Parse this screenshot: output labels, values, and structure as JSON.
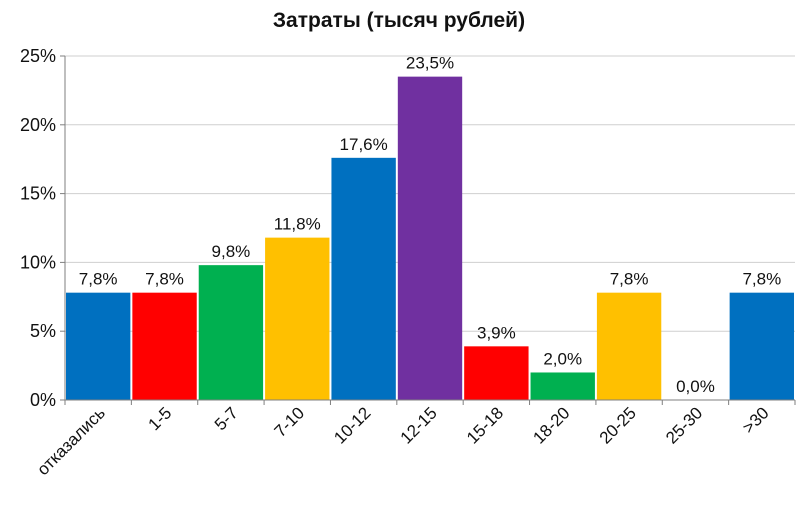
{
  "chart_data": {
    "type": "bar",
    "title": "Затраты (тысяч рублей)",
    "categories": [
      "отказались",
      "1-5",
      "5-7",
      "7-10",
      "10-12",
      "12-15",
      "15-18",
      "18-20",
      "20-25",
      "25-30",
      ">30"
    ],
    "values": [
      7.8,
      7.8,
      9.8,
      11.8,
      17.6,
      23.5,
      3.9,
      2.0,
      7.8,
      0.0,
      7.8
    ],
    "data_labels": [
      "7,8%",
      "7,8%",
      "9,8%",
      "11,8%",
      "17,6%",
      "23,5%",
      "3,9%",
      "2,0%",
      "7,8%",
      "0,0%",
      "7,8%"
    ],
    "colors": [
      "#0070c0",
      "#ff0000",
      "#00b050",
      "#ffc000",
      "#0070c0",
      "#7030a0",
      "#ff0000",
      "#00b050",
      "#ffc000",
      "#0070c0",
      "#0070c0"
    ],
    "yticks": [
      0,
      5,
      10,
      15,
      20,
      25
    ],
    "ytick_labels": [
      "0%",
      "5%",
      "10%",
      "15%",
      "20%",
      "25%"
    ],
    "ylim": [
      0,
      25
    ],
    "xlabel": "",
    "ylabel": "",
    "grid": true,
    "legend": "none"
  }
}
